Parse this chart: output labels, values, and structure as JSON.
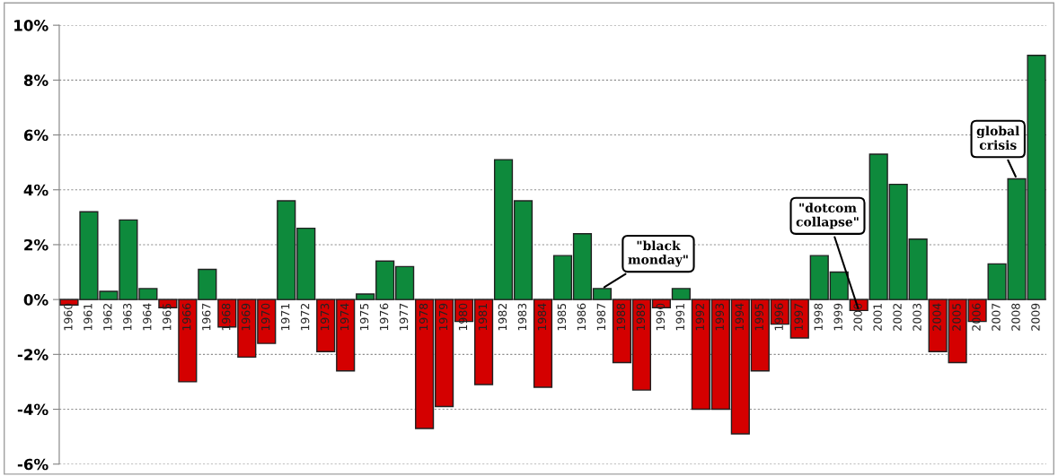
{
  "chart_data": {
    "type": "bar",
    "categories": [
      "1960",
      "1961",
      "1962",
      "1963",
      "1964",
      "1965",
      "1966",
      "1967",
      "1968",
      "1969",
      "1970",
      "1971",
      "1972",
      "1973",
      "1974",
      "1975",
      "1976",
      "1977",
      "1978",
      "1979",
      "1980",
      "1981",
      "1982",
      "1983",
      "1984",
      "1985",
      "1986",
      "1987",
      "1988",
      "1989",
      "1990",
      "1991",
      "1992",
      "1993",
      "1994",
      "1995",
      "1996",
      "1997",
      "1998",
      "1999",
      "2000",
      "2001",
      "2002",
      "2003",
      "2004",
      "2005",
      "2006",
      "2007",
      "2008",
      "2009"
    ],
    "values": [
      -0.2,
      3.2,
      0.3,
      2.9,
      0.4,
      -0.3,
      -3.0,
      1.1,
      -1.0,
      -2.1,
      -1.6,
      3.6,
      2.6,
      -1.9,
      -2.6,
      0.2,
      1.4,
      1.2,
      -4.7,
      -3.9,
      -0.8,
      -3.1,
      5.1,
      3.6,
      -3.2,
      1.6,
      2.4,
      0.4,
      -2.3,
      -3.3,
      -0.3,
      0.4,
      -4.0,
      -4.0,
      -4.9,
      -2.6,
      -0.9,
      -1.4,
      1.6,
      1.0,
      -0.4,
      5.3,
      4.2,
      2.2,
      -1.9,
      -2.3,
      -0.8,
      1.3,
      4.4,
      8.9
    ],
    "colors": [
      "#d40000",
      "#0e8a3c",
      "#0e8a3c",
      "#0e8a3c",
      "#0e8a3c",
      "#d40000",
      "#d40000",
      "#0e8a3c",
      "#d40000",
      "#d40000",
      "#d40000",
      "#0e8a3c",
      "#0e8a3c",
      "#d40000",
      "#d40000",
      "#0e8a3c",
      "#0e8a3c",
      "#0e8a3c",
      "#d40000",
      "#d40000",
      "#d40000",
      "#d40000",
      "#0e8a3c",
      "#0e8a3c",
      "#d40000",
      "#0e8a3c",
      "#0e8a3c",
      "#0e8a3c",
      "#d40000",
      "#d40000",
      "#d40000",
      "#0e8a3c",
      "#d40000",
      "#d40000",
      "#d40000",
      "#d40000",
      "#d40000",
      "#d40000",
      "#0e8a3c",
      "#0e8a3c",
      "#d40000",
      "#0e8a3c",
      "#0e8a3c",
      "#0e8a3c",
      "#d40000",
      "#d40000",
      "#d40000",
      "#0e8a3c",
      "#0e8a3c",
      "#0e8a3c"
    ],
    "ylim": [
      -6,
      10
    ],
    "yticks": [
      {
        "value": -6,
        "label": "-6%"
      },
      {
        "value": -4,
        "label": "-4%"
      },
      {
        "value": -2,
        "label": "-2%"
      },
      {
        "value": 0,
        "label": "0%"
      },
      {
        "value": 2,
        "label": "2%"
      },
      {
        "value": 4,
        "label": "4%"
      },
      {
        "value": 6,
        "label": "6%"
      },
      {
        "value": 8,
        "label": "8%"
      },
      {
        "value": 10,
        "label": "10%"
      }
    ],
    "grid": "y",
    "annotations": [
      {
        "text": "\"black\nmonday\"",
        "x": "1987",
        "y": 0.4
      },
      {
        "text": "\"dotcom\ncollapse\"",
        "x": "2000",
        "y": -0.4
      },
      {
        "text": "global\ncrisis",
        "x": "2008",
        "y": 4.4
      }
    ]
  }
}
